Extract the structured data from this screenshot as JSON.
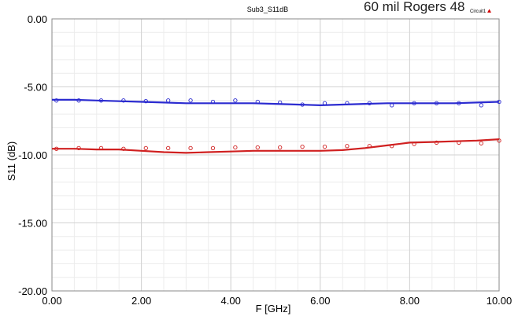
{
  "chart_data": {
    "type": "line",
    "title": "Sub3_S11dB",
    "overlay_text": "60 mil Rogers 48",
    "legend": [
      {
        "label": "Circuit1",
        "color": "#d40000"
      }
    ],
    "xlabel": "F [GHz]",
    "ylabel": "S11 (dB)",
    "xlim": [
      0,
      10
    ],
    "ylim": [
      -20,
      0
    ],
    "xticks": [
      0,
      2,
      4,
      6,
      8,
      10
    ],
    "xtick_labels": [
      "0.00",
      "2.00",
      "4.00",
      "6.00",
      "8.00",
      "10.00"
    ],
    "yticks": [
      0,
      -5,
      -10,
      -15,
      -20
    ],
    "ytick_labels": [
      "0.00",
      "-5.00",
      "-10.00",
      "-15.00",
      "-20.00"
    ],
    "grid": true,
    "series": [
      {
        "kind": "line",
        "color": "#2b2bd0",
        "x": [
          0.0,
          0.5,
          1.0,
          1.5,
          2.0,
          2.5,
          3.0,
          3.5,
          4.0,
          4.5,
          5.0,
          5.5,
          6.0,
          6.5,
          7.0,
          7.5,
          8.0,
          8.5,
          9.0,
          9.5,
          10.0
        ],
        "y": [
          -5.95,
          -5.95,
          -6.0,
          -6.05,
          -6.1,
          -6.15,
          -6.2,
          -6.2,
          -6.2,
          -6.2,
          -6.25,
          -6.3,
          -6.35,
          -6.3,
          -6.25,
          -6.2,
          -6.2,
          -6.2,
          -6.2,
          -6.15,
          -6.1
        ]
      },
      {
        "kind": "markers",
        "color": "#2b2bd0",
        "x": [
          0.1,
          0.6,
          1.1,
          1.6,
          2.1,
          2.6,
          3.1,
          3.6,
          4.1,
          4.6,
          5.1,
          5.6,
          6.1,
          6.6,
          7.1,
          7.6,
          8.1,
          8.6,
          9.1,
          9.6,
          10.0
        ],
        "y": [
          -6.0,
          -6.0,
          -6.0,
          -6.0,
          -6.05,
          -6.0,
          -6.0,
          -6.1,
          -6.0,
          -6.1,
          -6.15,
          -6.3,
          -6.2,
          -6.2,
          -6.2,
          -6.35,
          -6.2,
          -6.2,
          -6.2,
          -6.35,
          -6.1
        ]
      },
      {
        "kind": "line",
        "color": "#d02020",
        "x": [
          0.0,
          0.5,
          1.0,
          1.5,
          2.0,
          2.5,
          3.0,
          3.5,
          4.0,
          4.5,
          5.0,
          5.5,
          6.0,
          6.5,
          7.0,
          7.5,
          8.0,
          8.5,
          9.0,
          9.5,
          10.0
        ],
        "y": [
          -9.55,
          -9.55,
          -9.6,
          -9.6,
          -9.7,
          -9.8,
          -9.85,
          -9.8,
          -9.75,
          -9.7,
          -9.7,
          -9.7,
          -9.7,
          -9.65,
          -9.5,
          -9.3,
          -9.1,
          -9.05,
          -9.0,
          -8.95,
          -8.85
        ]
      },
      {
        "kind": "markers",
        "color": "#d02020",
        "x": [
          0.1,
          0.6,
          1.1,
          1.6,
          2.1,
          2.6,
          3.1,
          3.6,
          4.1,
          4.6,
          5.1,
          5.6,
          6.1,
          6.6,
          7.1,
          7.6,
          8.1,
          8.6,
          9.1,
          9.6,
          10.0
        ],
        "y": [
          -9.55,
          -9.5,
          -9.5,
          -9.55,
          -9.5,
          -9.5,
          -9.5,
          -9.5,
          -9.45,
          -9.45,
          -9.45,
          -9.4,
          -9.4,
          -9.35,
          -9.35,
          -9.35,
          -9.2,
          -9.1,
          -9.1,
          -9.15,
          -8.95
        ]
      }
    ]
  }
}
